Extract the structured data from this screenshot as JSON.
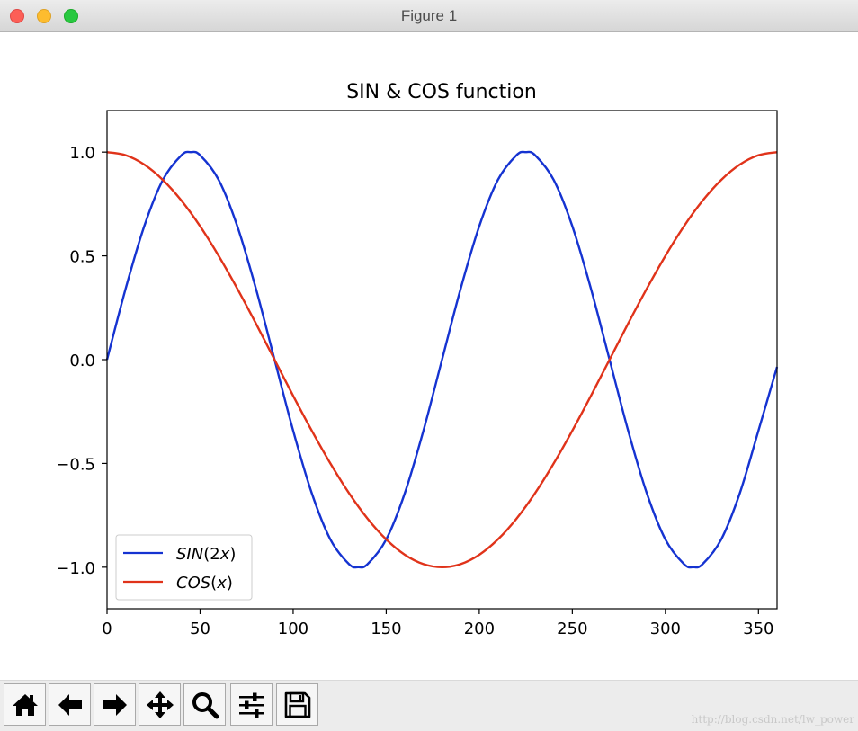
{
  "window": {
    "title": "Figure 1"
  },
  "toolbar": {
    "buttons": [
      {
        "name": "home-button",
        "icon": "home-icon"
      },
      {
        "name": "back-button",
        "icon": "arrow-left-icon"
      },
      {
        "name": "forward-button",
        "icon": "arrow-right-icon"
      },
      {
        "name": "pan-button",
        "icon": "move-icon"
      },
      {
        "name": "zoom-button",
        "icon": "magnifier-icon"
      },
      {
        "name": "configure-subplots-button",
        "icon": "sliders-icon"
      },
      {
        "name": "save-button",
        "icon": "floppy-disk-icon"
      }
    ]
  },
  "watermark": "http://blog.csdn.net/lw_power",
  "chart_data": {
    "type": "line",
    "title": "SIN & COS function",
    "xlabel": "",
    "ylabel": "",
    "xlim": [
      0,
      360
    ],
    "ylim": [
      -1.2,
      1.2
    ],
    "xticks": [
      0,
      50,
      100,
      150,
      200,
      250,
      300,
      350
    ],
    "yticks": [
      1.0,
      0.5,
      0.0,
      -0.5,
      -1.0
    ],
    "xtick_labels": [
      "0",
      "50",
      "100",
      "150",
      "200",
      "250",
      "300",
      "350"
    ],
    "ytick_labels": [
      "1.0",
      "0.5",
      "0.0",
      "−0.5",
      "−1.0"
    ],
    "grid": false,
    "legend_position": "lower-left",
    "series": [
      {
        "name": "SIN(2x)",
        "legend_name": "SIN",
        "legend_arg": "2x",
        "color": "#1533d1",
        "x": [
          0,
          10,
          20,
          30,
          40,
          45,
          50,
          60,
          70,
          80,
          90,
          100,
          110,
          120,
          130,
          135,
          140,
          150,
          160,
          170,
          180,
          190,
          200,
          210,
          220,
          225,
          230,
          240,
          250,
          260,
          270,
          280,
          290,
          300,
          310,
          315,
          320,
          330,
          340,
          350,
          360
        ],
        "y": [
          0,
          0.342,
          0.643,
          0.866,
          0.985,
          1.0,
          0.985,
          0.866,
          0.643,
          0.342,
          0,
          -0.342,
          -0.643,
          -0.866,
          -0.985,
          -1.0,
          -0.985,
          -0.866,
          -0.643,
          -0.342,
          0,
          0.342,
          0.643,
          0.866,
          0.985,
          1.0,
          0.985,
          0.866,
          0.643,
          0.342,
          0,
          -0.342,
          -0.643,
          -0.866,
          -0.985,
          -1.0,
          -0.985,
          -0.866,
          -0.643,
          -0.342,
          -0.035
        ]
      },
      {
        "name": "COS(x)",
        "legend_name": "COS",
        "legend_arg": "x",
        "color": "#e0331a",
        "x": [
          0,
          10,
          20,
          30,
          40,
          50,
          60,
          70,
          80,
          90,
          100,
          110,
          120,
          130,
          140,
          150,
          160,
          170,
          180,
          190,
          200,
          210,
          220,
          230,
          240,
          250,
          260,
          270,
          280,
          290,
          300,
          310,
          320,
          330,
          340,
          350,
          360
        ],
        "y": [
          1.0,
          0.985,
          0.94,
          0.866,
          0.766,
          0.643,
          0.5,
          0.342,
          0.174,
          0,
          -0.174,
          -0.342,
          -0.5,
          -0.643,
          -0.766,
          -0.866,
          -0.94,
          -0.985,
          -1.0,
          -0.985,
          -0.94,
          -0.866,
          -0.766,
          -0.643,
          -0.5,
          -0.342,
          -0.174,
          0,
          0.174,
          0.342,
          0.5,
          0.643,
          0.766,
          0.866,
          0.94,
          0.985,
          1.0
        ]
      }
    ]
  }
}
